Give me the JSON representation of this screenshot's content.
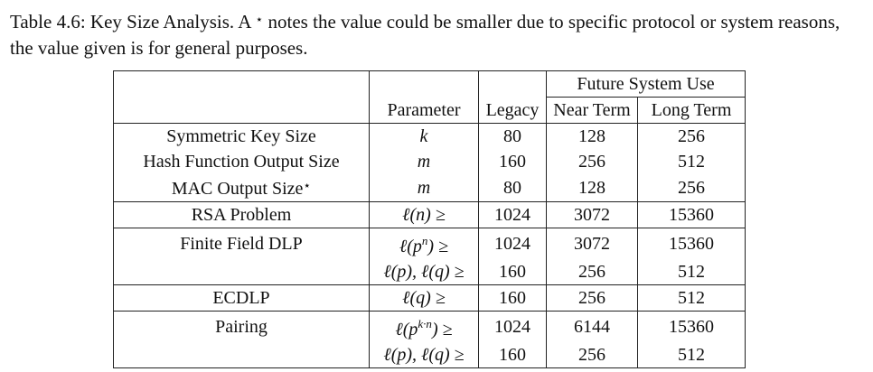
{
  "caption": {
    "label": "Table 4.6:",
    "text": "Key Size Analysis. A",
    "star": "⋆",
    "rest": "notes the value could be smaller due to specific protocol or system reasons, the value given is for general purposes."
  },
  "headers": {
    "group": "Future System Use",
    "parameter": "Parameter",
    "legacy": "Legacy",
    "near_term": "Near Term",
    "long_term": "Long Term"
  },
  "rows": [
    {
      "metric": "Symmetric Key Size",
      "parameter": "k",
      "legacy": "80",
      "near": "128",
      "long": "256"
    },
    {
      "metric": "Hash Function Output Size",
      "parameter": "m",
      "legacy": "160",
      "near": "256",
      "long": "512"
    },
    {
      "metric": "MAC Output Size",
      "metric_star": "⋆",
      "parameter": "m",
      "legacy": "80",
      "near": "128",
      "long": "256"
    },
    {
      "metric": "RSA Problem",
      "parameter": "ℓ(n) ≥",
      "legacy": "1024",
      "near": "3072",
      "long": "15360"
    },
    {
      "metric": "Finite Field DLP",
      "parameter_base": "ℓ(p",
      "parameter_sup": "n",
      "parameter_tail": ") ≥",
      "legacy": "1024",
      "near": "3072",
      "long": "15360"
    },
    {
      "metric": "",
      "parameter": "ℓ(p), ℓ(q) ≥",
      "legacy": "160",
      "near": "256",
      "long": "512"
    },
    {
      "metric": "ECDLP",
      "parameter": "ℓ(q) ≥",
      "legacy": "160",
      "near": "256",
      "long": "512"
    },
    {
      "metric": "Pairing",
      "parameter_base": "ℓ(p",
      "parameter_sup": "k·n",
      "parameter_tail": ") ≥",
      "legacy": "1024",
      "near": "6144",
      "long": "15360"
    },
    {
      "metric": "",
      "parameter": "ℓ(p), ℓ(q) ≥",
      "legacy": "160",
      "near": "256",
      "long": "512"
    }
  ]
}
